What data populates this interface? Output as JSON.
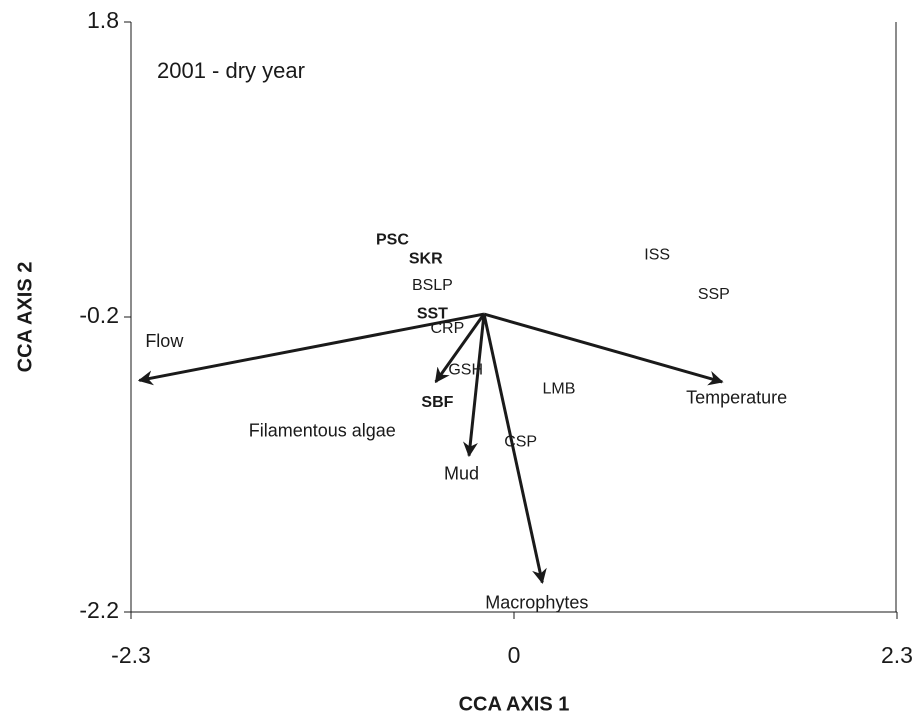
{
  "chart_data": {
    "type": "biplot",
    "annotation": "2001 - dry year",
    "x_label": "CCA AXIS 1",
    "y_label": "CCA AXIS 2",
    "xlim": [
      -2.3,
      2.3
    ],
    "xticks": [
      -2.3,
      0,
      2.3
    ],
    "ylim": [
      -2.2,
      1.8
    ],
    "yticks": [
      1.8,
      -0.2,
      -2.2
    ],
    "color": "#1a1a1a",
    "points": [
      {
        "label": "PSC",
        "x": -0.73,
        "y": 0.32,
        "bold": true
      },
      {
        "label": "SKR",
        "x": -0.53,
        "y": 0.19,
        "bold": true
      },
      {
        "label": "BSLP",
        "x": -0.49,
        "y": 0.01,
        "bold": false
      },
      {
        "label": "SST",
        "x": -0.49,
        "y": -0.18,
        "bold": true
      },
      {
        "label": "CRP",
        "x": -0.4,
        "y": -0.28,
        "bold": false
      },
      {
        "label": "GSH",
        "x": -0.29,
        "y": -0.56,
        "bold": false
      },
      {
        "label": "SBF",
        "x": -0.46,
        "y": -0.78,
        "bold": true
      },
      {
        "label": "LMB",
        "x": 0.27,
        "y": -0.69,
        "bold": false
      },
      {
        "label": "CSP",
        "x": 0.04,
        "y": -1.05,
        "bold": false
      },
      {
        "label": "ISS",
        "x": 0.86,
        "y": 0.22,
        "bold": false
      },
      {
        "label": "SSP",
        "x": 1.2,
        "y": -0.05,
        "bold": false
      }
    ],
    "vector_origin": {
      "x": -0.18,
      "y": -0.18
    },
    "vectors": [
      {
        "label": "Flow",
        "x": -2.25,
        "y": -0.63
      },
      {
        "label": "Temperature",
        "x": 1.25,
        "y": -0.64
      },
      {
        "label": "Filamentous algae",
        "x": -0.47,
        "y": -0.64
      },
      {
        "label": "Mud",
        "x": -0.27,
        "y": -1.14
      },
      {
        "label": "Macrophytes",
        "x": 0.17,
        "y": -2.0
      }
    ]
  }
}
